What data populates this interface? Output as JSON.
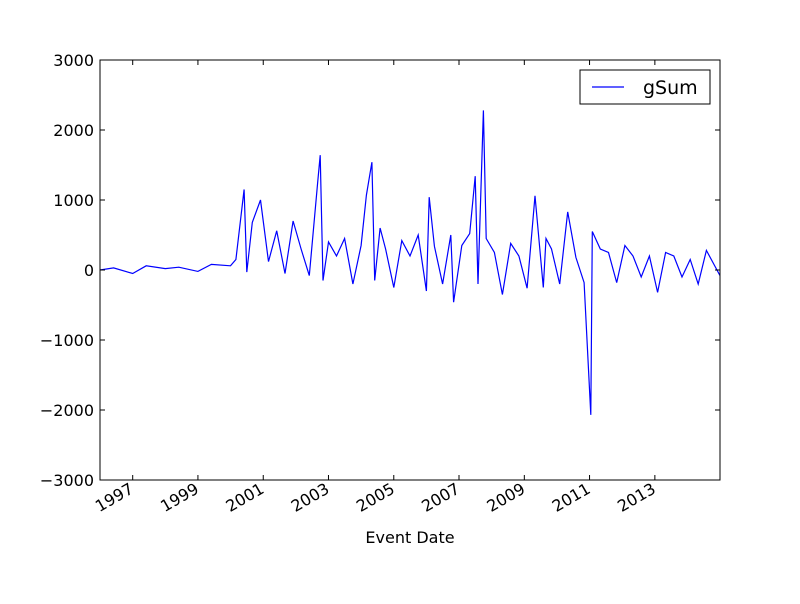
{
  "chart_data": {
    "type": "line",
    "title": "",
    "xlabel": "Event Date",
    "ylabel": "",
    "xlim": [
      "1996-01-01",
      "2014-12-31"
    ],
    "ylim": [
      -3000,
      3000
    ],
    "xticks": [
      "1997",
      "1999",
      "2001",
      "2003",
      "2005",
      "2007",
      "2009",
      "2011",
      "2013"
    ],
    "yticks": [
      "3000",
      "2000",
      "1000",
      "0",
      "−1000",
      "−2000",
      "−3000"
    ],
    "legend": {
      "position": "top-right",
      "entries": [
        "gSum"
      ]
    },
    "grid": false,
    "series": [
      {
        "name": "gSum",
        "color": "#0000ff",
        "x": [
          "1996-01-01",
          "1996-06-01",
          "1997-01-01",
          "1997-06-01",
          "1998-01-01",
          "1998-06-01",
          "1999-01-01",
          "1999-06-01",
          "2000-01-01",
          "2000-03-01",
          "2000-06-01",
          "2000-07-01",
          "2000-09-01",
          "2000-12-01",
          "2001-03-01",
          "2001-06-01",
          "2001-09-01",
          "2001-12-01",
          "2002-03-01",
          "2002-06-01",
          "2002-09-01",
          "2002-10-01",
          "2002-11-01",
          "2003-01-01",
          "2003-04-01",
          "2003-07-01",
          "2003-10-01",
          "2004-01-01",
          "2004-03-01",
          "2004-05-01",
          "2004-06-01",
          "2004-08-01",
          "2004-10-01",
          "2005-01-01",
          "2005-04-01",
          "2005-07-01",
          "2005-10-01",
          "2006-01-01",
          "2006-02-01",
          "2006-04-01",
          "2006-07-01",
          "2006-10-01",
          "2006-11-01",
          "2007-02-01",
          "2007-05-01",
          "2007-07-01",
          "2007-08-01",
          "2007-10-01",
          "2007-11-01",
          "2008-02-01",
          "2008-05-01",
          "2008-08-01",
          "2008-11-01",
          "2009-02-01",
          "2009-05-01",
          "2009-08-01",
          "2009-09-01",
          "2009-11-01",
          "2010-02-01",
          "2010-05-01",
          "2010-08-01",
          "2010-11-01",
          "2011-01-15",
          "2011-02-01",
          "2011-05-01",
          "2011-08-01",
          "2011-11-01",
          "2012-02-01",
          "2012-05-01",
          "2012-08-01",
          "2012-11-01",
          "2013-02-01",
          "2013-05-01",
          "2013-08-01",
          "2013-11-01",
          "2014-02-01",
          "2014-05-01",
          "2014-08-01",
          "2014-12-31"
        ],
        "values": [
          0,
          30,
          -50,
          60,
          20,
          40,
          -20,
          80,
          60,
          150,
          1150,
          -30,
          680,
          1000,
          120,
          560,
          -50,
          700,
          300,
          -80,
          1240,
          1640,
          -150,
          400,
          200,
          450,
          -200,
          350,
          1070,
          1540,
          -150,
          600,
          300,
          -250,
          420,
          200,
          500,
          -300,
          1040,
          340,
          -200,
          500,
          -460,
          350,
          520,
          1340,
          -200,
          2280,
          450,
          250,
          -350,
          380,
          200,
          -260,
          1060,
          -250,
          450,
          300,
          -200,
          830,
          180,
          -180,
          -2070,
          550,
          300,
          250,
          -180,
          350,
          200,
          -100,
          200,
          -320,
          250,
          200,
          -100,
          150,
          -200,
          280,
          -80
        ]
      }
    ]
  }
}
